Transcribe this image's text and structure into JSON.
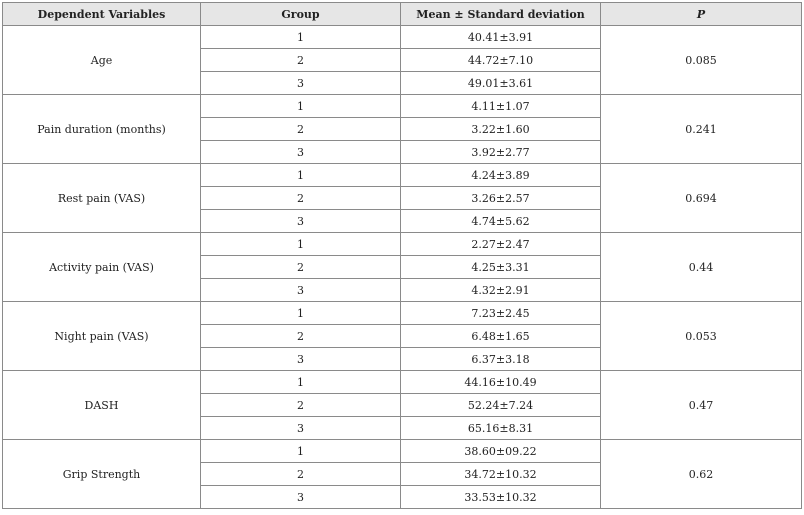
{
  "table": {
    "headers": [
      "Dependent Variables",
      "Group",
      "Mean ± Standard deviation",
      "P"
    ],
    "rows": [
      {
        "variable": "Age",
        "p": "0.085",
        "groups": [
          {
            "group": "1",
            "value": "40.41±3.91"
          },
          {
            "group": "2",
            "value": "44.72±7.10"
          },
          {
            "group": "3",
            "value": "49.01±3.61"
          }
        ]
      },
      {
        "variable": "Pain duration (months)",
        "p": "0.241",
        "groups": [
          {
            "group": "1",
            "value": "4.11±1.07"
          },
          {
            "group": "2",
            "value": "3.22±1.60"
          },
          {
            "group": "3",
            "value": "3.92±2.77"
          }
        ]
      },
      {
        "variable": "Rest pain (VAS)",
        "p": "0.694",
        "groups": [
          {
            "group": "1",
            "value": "4.24±3.89"
          },
          {
            "group": "2",
            "value": "3.26±2.57"
          },
          {
            "group": "3",
            "value": "4.74±5.62"
          }
        ]
      },
      {
        "variable": "Activity pain (VAS)",
        "p": "0.44",
        "groups": [
          {
            "group": "1",
            "value": "2.27±2.47"
          },
          {
            "group": "2",
            "value": "4.25±3.31"
          },
          {
            "group": "3",
            "value": "4.32±2.91"
          }
        ]
      },
      {
        "variable": "Night pain (VAS)",
        "p": "0.053",
        "groups": [
          {
            "group": "1",
            "value": "7.23±2.45"
          },
          {
            "group": "2",
            "value": "6.48±1.65"
          },
          {
            "group": "3",
            "value": "6.37±3.18"
          }
        ]
      },
      {
        "variable": "DASH",
        "p": "0.47",
        "groups": [
          {
            "group": "1",
            "value": "44.16±10.49"
          },
          {
            "group": "2",
            "value": "52.24±7.24"
          },
          {
            "group": "3",
            "value": "65.16±8.31"
          }
        ]
      },
      {
        "variable": "Grip Strength",
        "p": "0.62",
        "groups": [
          {
            "group": "1",
            "value": "38.60±09.22"
          },
          {
            "group": "2",
            "value": "34.72±10.32"
          },
          {
            "group": "3",
            "value": "33.53±10.32"
          }
        ]
      }
    ]
  }
}
